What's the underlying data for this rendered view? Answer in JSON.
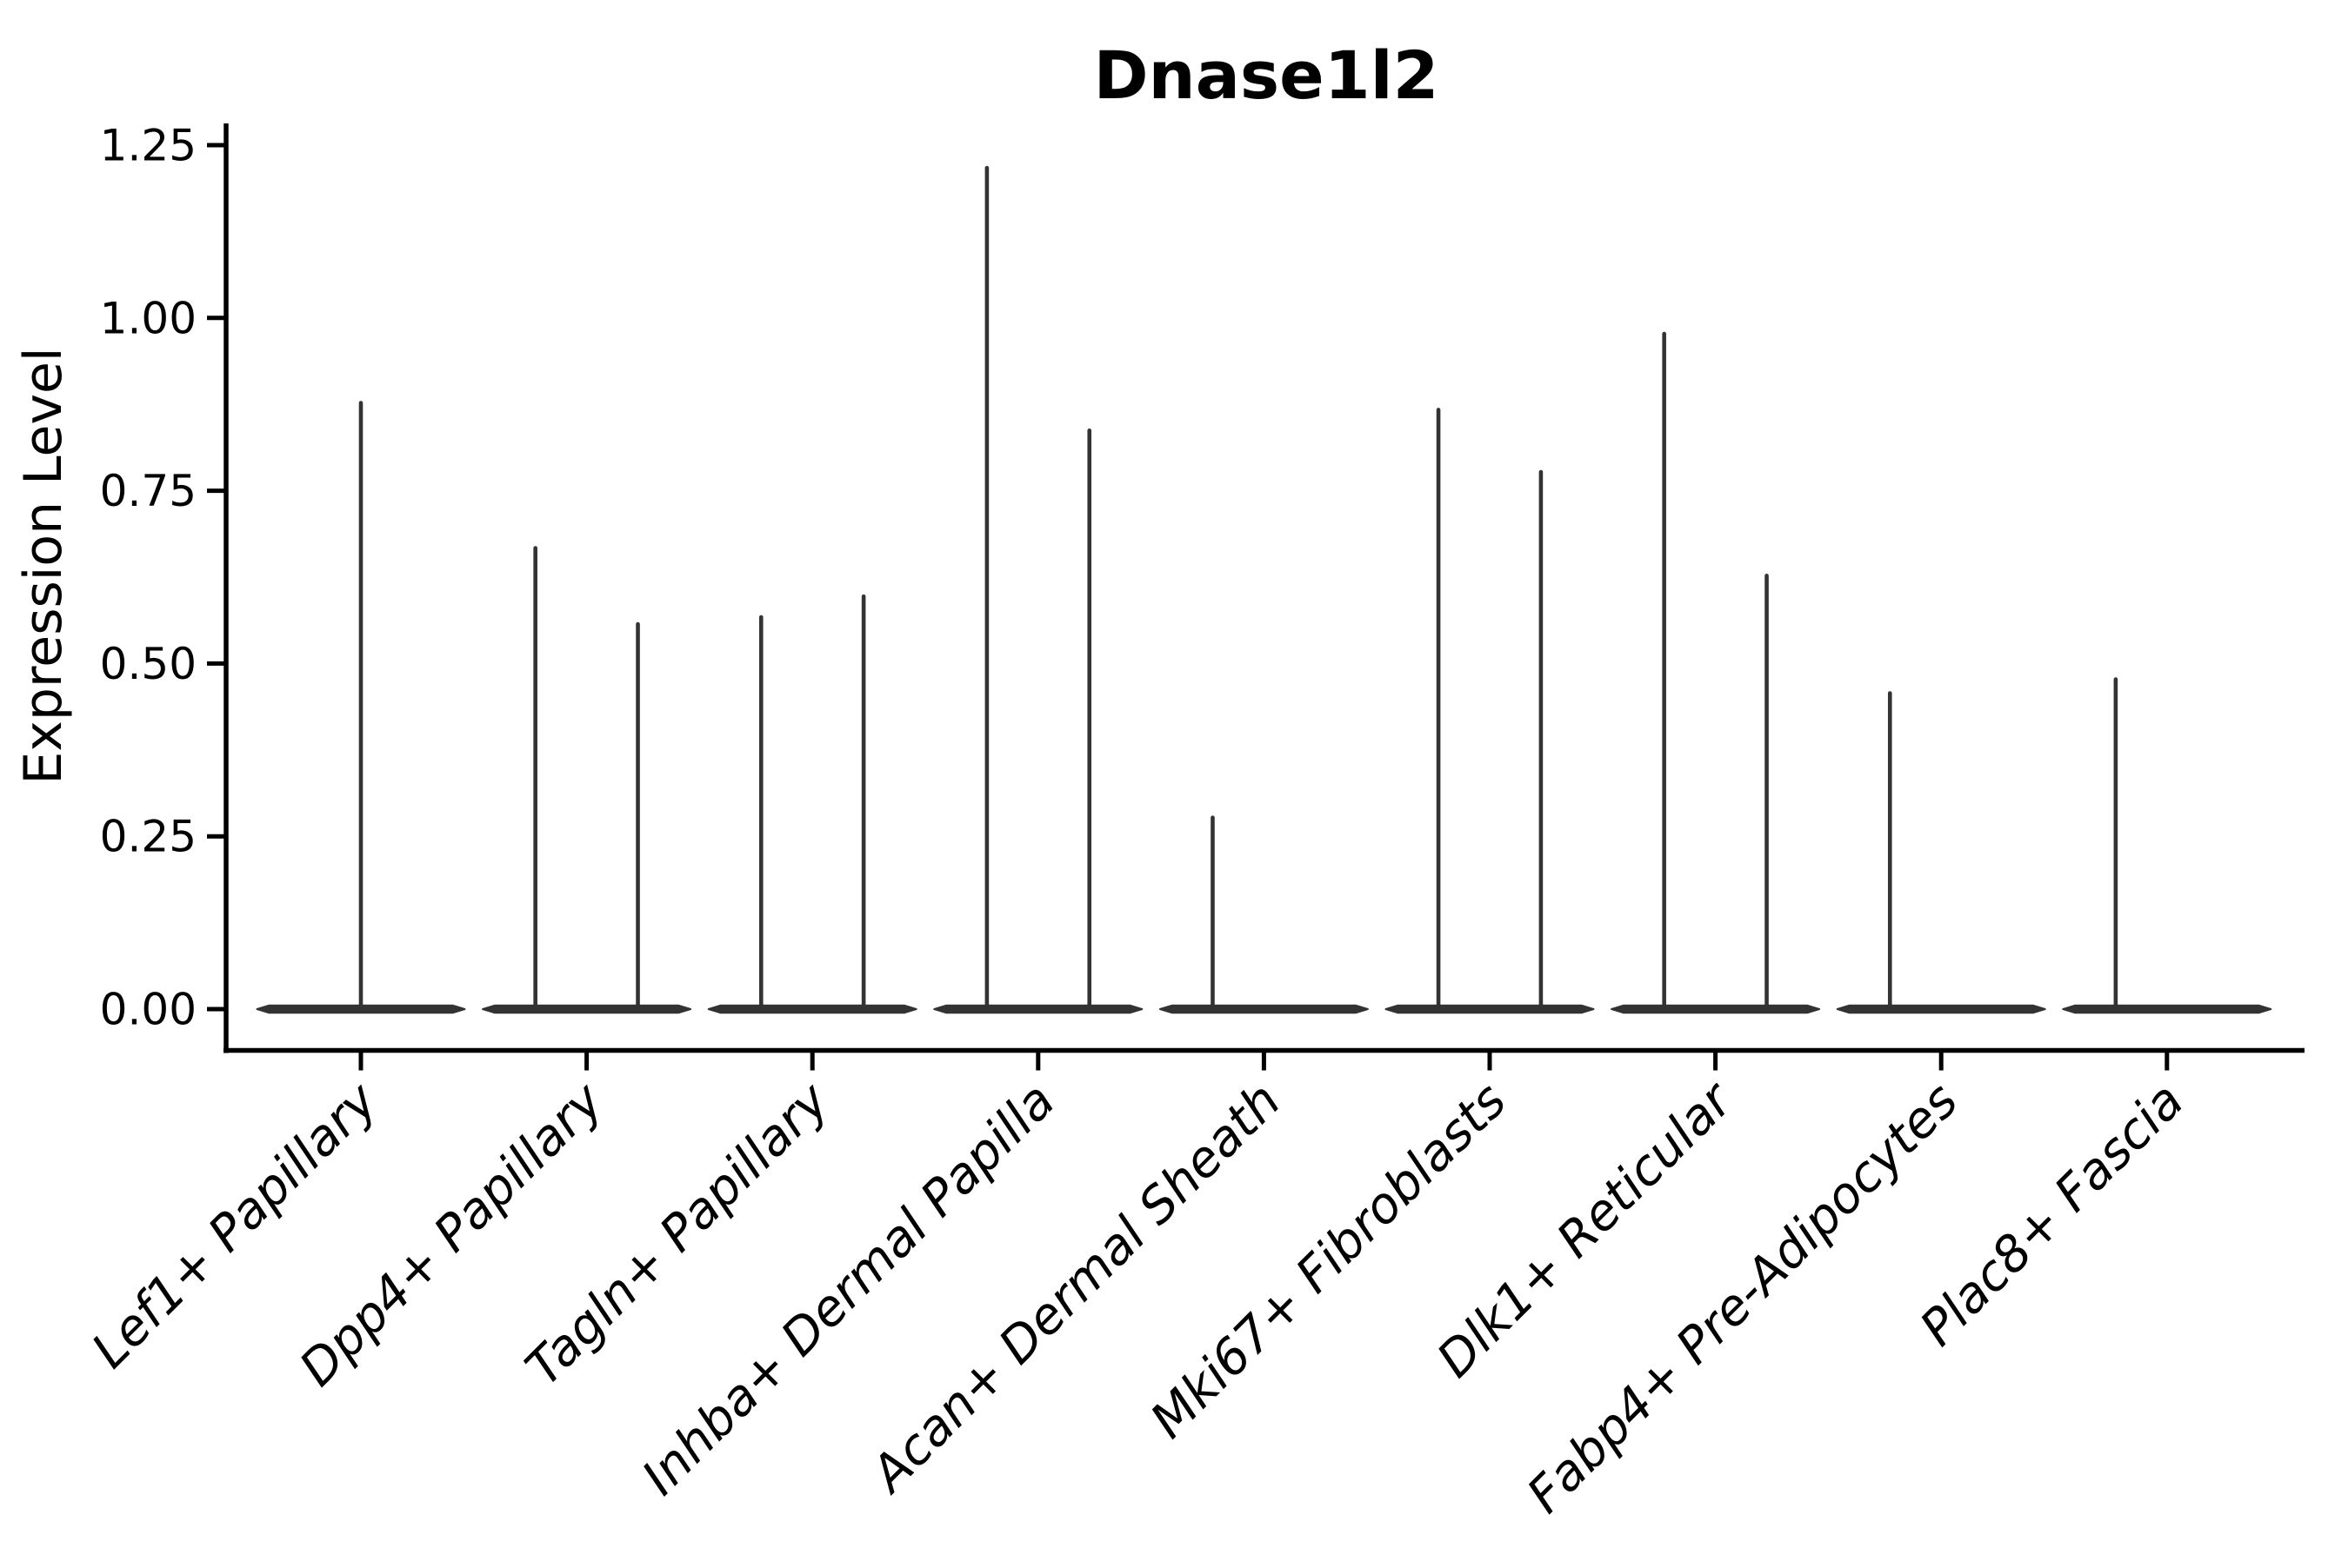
{
  "title": "Dnase1l2",
  "y_axis": {
    "label": "Expression Level",
    "tick_labels": [
      "0.00",
      "0.25",
      "0.50",
      "0.75",
      "1.00",
      "1.25"
    ]
  },
  "x_axis": {
    "categories": [
      "Lef1+ Papillary",
      "Dpp4+ Papillary",
      "Tagln+ Papillary",
      "Inhba+ Dermal Papilla",
      "Acan+ Dermal Sheath",
      "Mki67+ Fibroblasts",
      "Dlk1+ Reticular",
      "Fabp4+ Pre-Adipocytes",
      "Plac8+ Fascia"
    ]
  },
  "colors": {
    "violin": "#333333",
    "axis": "#000000",
    "background": "#ffffff"
  },
  "chart_data": {
    "type": "violin",
    "title": "Dnase1l2",
    "xlabel": "",
    "ylabel": "Expression Level",
    "ylim": [
      -0.06,
      1.28
    ],
    "yticks": [
      0,
      0.25,
      0.5,
      0.75,
      1.0,
      1.25
    ],
    "ytick_labels": [
      "0.00",
      "0.25",
      "0.50",
      "0.75",
      "1.00",
      "1.25"
    ],
    "xtick_rotation": 45,
    "grid": false,
    "legend": "none",
    "description": "Violin plot of Dnase1l2 expression level per fibroblast subtype; each violin is collapsed at 0 with a thin spike reaching the maximum expression value. Several categories contain two side-by-side violins.",
    "categories": [
      "Lef1+ Papillary",
      "Dpp4+ Papillary",
      "Tagln+ Papillary",
      "Inhba+ Dermal Papilla",
      "Acan+ Dermal Sheath",
      "Mki67+ Fibroblasts",
      "Dlk1+ Reticular",
      "Fabp4+ Pre-Adipocytes",
      "Plac8+ Fascia"
    ],
    "series": [
      {
        "category": "Lef1+ Papillary",
        "violins": [
          {
            "offset": 0,
            "max": 0.88
          }
        ]
      },
      {
        "category": "Dpp4+ Papillary",
        "violins": [
          {
            "offset": -0.227,
            "max": 0.67
          },
          {
            "offset": 0.227,
            "max": 0.56
          }
        ]
      },
      {
        "category": "Tagln+ Papillary",
        "violins": [
          {
            "offset": -0.227,
            "max": 0.57
          },
          {
            "offset": 0.227,
            "max": 0.6
          }
        ]
      },
      {
        "category": "Inhba+ Dermal Papilla",
        "violins": [
          {
            "offset": -0.227,
            "max": 1.22
          },
          {
            "offset": 0.227,
            "max": 0.84
          }
        ]
      },
      {
        "category": "Acan+ Dermal Sheath",
        "violins": [
          {
            "offset": -0.227,
            "max": 0.28
          },
          {
            "offset": 0.227,
            "max": 0.0
          }
        ]
      },
      {
        "category": "Mki67+ Fibroblasts",
        "violins": [
          {
            "offset": -0.227,
            "max": 0.87
          },
          {
            "offset": 0.227,
            "max": 0.78
          }
        ]
      },
      {
        "category": "Dlk1+ Reticular",
        "violins": [
          {
            "offset": -0.227,
            "max": 0.98
          },
          {
            "offset": 0.227,
            "max": 0.63
          }
        ]
      },
      {
        "category": "Fabp4+ Pre-Adipocytes",
        "violins": [
          {
            "offset": -0.227,
            "max": 0.46
          },
          {
            "offset": 0.227,
            "max": 0.0
          }
        ]
      },
      {
        "category": "Plac8+ Fascia",
        "violins": [
          {
            "offset": -0.227,
            "max": 0.48
          },
          {
            "offset": 0.227,
            "max": 0.0
          }
        ]
      }
    ]
  }
}
